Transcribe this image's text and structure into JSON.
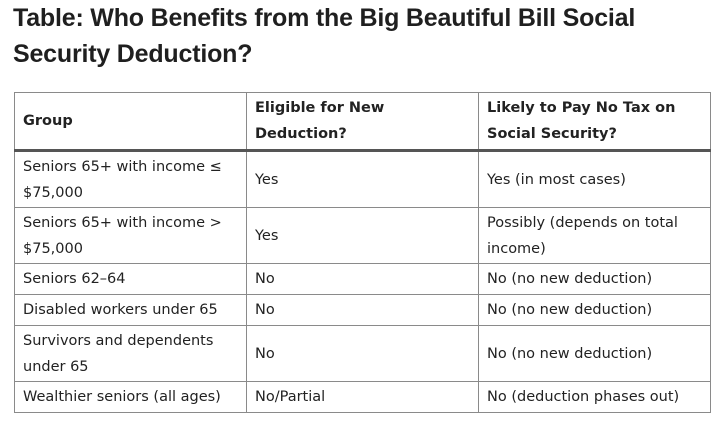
{
  "title": "Table: Who Benefits from the Big Beautiful Bill Social Security Deduction?",
  "table": {
    "headers": [
      "Group",
      "Eligible for New Deduction?",
      "Likely to Pay No Tax on Social Security?"
    ],
    "rows": [
      {
        "group": "Seniors 65+ with income ≤ $75,000",
        "eligible": "Yes",
        "no_tax": "Yes (in most cases)"
      },
      {
        "group": "Seniors 65+ with income > $75,000",
        "eligible": "Yes",
        "no_tax": "Possibly (depends on total income)"
      },
      {
        "group": "Seniors 62–64",
        "eligible": "No",
        "no_tax": "No (no new deduction)"
      },
      {
        "group": "Disabled workers under 65",
        "eligible": "No",
        "no_tax": "No (no new deduction)"
      },
      {
        "group": "Survivors and dependents under 65",
        "eligible": "No",
        "no_tax": "No (no new deduction)"
      },
      {
        "group": "Wealthier seniors (all ages)",
        "eligible": "No/Partial",
        "no_tax": "No (deduction phases out)"
      }
    ]
  }
}
